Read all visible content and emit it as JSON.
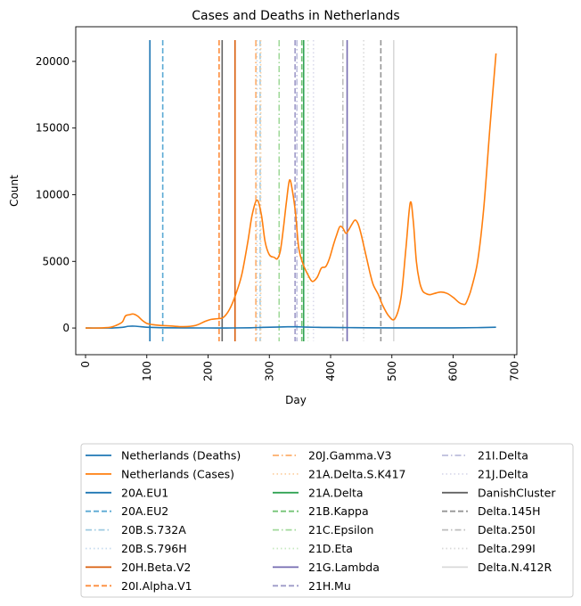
{
  "chart_data": {
    "type": "line",
    "title": "Cases and Deaths in Netherlands",
    "xlabel": "Day",
    "ylabel": "Count",
    "xlim": [
      -16,
      704
    ],
    "ylim": [
      -2000,
      22600
    ],
    "xticks": [
      0,
      100,
      200,
      300,
      400,
      500,
      600,
      700
    ],
    "yticks": [
      0,
      5000,
      10000,
      15000,
      20000
    ],
    "grid": false,
    "legend_placement": "below plot, 3 columns",
    "series": [
      {
        "name": "Netherlands (Deaths)",
        "color": "#1f77b4",
        "x": [
          0,
          40,
          60,
          70,
          80,
          90,
          100,
          110,
          130,
          160,
          200,
          240,
          270,
          290,
          310,
          330,
          345,
          360,
          380,
          400,
          430,
          460,
          500,
          550,
          600,
          640,
          670
        ],
        "y": [
          0,
          0,
          50,
          130,
          140,
          100,
          60,
          40,
          20,
          10,
          5,
          5,
          20,
          50,
          70,
          90,
          90,
          70,
          50,
          40,
          30,
          20,
          10,
          10,
          10,
          30,
          60
        ]
      },
      {
        "name": "Netherlands (Cases)",
        "color": "#ff7f0e",
        "x": [
          0,
          20,
          40,
          50,
          60,
          65,
          72,
          78,
          85,
          92,
          100,
          110,
          120,
          140,
          160,
          180,
          195,
          205,
          215,
          225,
          235,
          245,
          255,
          265,
          272,
          280,
          287,
          293,
          300,
          308,
          313,
          318,
          323,
          328,
          333,
          338,
          343,
          348,
          355,
          363,
          370,
          378,
          385,
          392,
          398,
          405,
          410,
          415,
          420,
          425,
          430,
          435,
          440,
          445,
          450,
          455,
          460,
          465,
          470,
          478,
          485,
          495,
          505,
          515,
          523,
          530,
          535,
          540,
          545,
          550,
          555,
          562,
          570,
          580,
          590,
          600,
          610,
          615,
          620,
          625,
          630,
          640,
          650,
          660,
          670
        ],
        "y": [
          0,
          0,
          50,
          200,
          450,
          900,
          1000,
          1050,
          900,
          600,
          350,
          250,
          200,
          150,
          100,
          200,
          500,
          650,
          700,
          800,
          1400,
          2500,
          4000,
          6500,
          8500,
          9600,
          8500,
          6500,
          5500,
          5300,
          5200,
          5800,
          7500,
          9500,
          11100,
          10200,
          8500,
          6000,
          4800,
          4000,
          3500,
          3800,
          4500,
          4600,
          5200,
          6300,
          7000,
          7600,
          7500,
          7100,
          7400,
          7800,
          8100,
          7800,
          7000,
          6000,
          5000,
          4000,
          3200,
          2500,
          1700,
          900,
          700,
          2300,
          6000,
          9400,
          8000,
          5000,
          3500,
          2800,
          2600,
          2500,
          2600,
          2700,
          2600,
          2300,
          1900,
          1800,
          1800,
          2300,
          3000,
          5000,
          9000,
          15000,
          20600
        ]
      }
    ],
    "vlines": [
      {
        "name": "20A.EU1",
        "x": 105,
        "color": "#1f77b4",
        "style": "solid"
      },
      {
        "name": "20A.EU2",
        "x": 126,
        "color": "#5aa9d4",
        "style": "dashed"
      },
      {
        "name": "20B.S.732A",
        "x": 285,
        "color": "#9ecae1",
        "style": "dashdot"
      },
      {
        "name": "20B.S.796H",
        "x": 280,
        "color": "#c6dbef",
        "style": "dotted"
      },
      {
        "name": "20H.Beta.V2",
        "x": 244,
        "color": "#d95f0e",
        "style": "solid"
      },
      {
        "name": "20I.Alpha.V1",
        "x": 218,
        "color": "#fd8d3c",
        "style": "dashed"
      },
      {
        "name": "20J.Gamma.V3",
        "x": 278,
        "color": "#fdae6b",
        "style": "dashdot"
      },
      {
        "name": "21A.Delta.S.K417",
        "x": 286,
        "color": "#fdd0a2",
        "style": "dotted"
      },
      {
        "name": "21A.Delta",
        "x": 356,
        "color": "#31a354",
        "style": "solid"
      },
      {
        "name": "21B.Kappa",
        "x": 353,
        "color": "#74c476",
        "style": "dashed"
      },
      {
        "name": "21C.Epsilon",
        "x": 316,
        "color": "#a1d99b",
        "style": "dashdot"
      },
      {
        "name": "21D.Eta",
        "x": 363,
        "color": "#c7e9c0",
        "style": "dotted"
      },
      {
        "name": "21G.Lambda",
        "x": 427,
        "color": "#756bb1",
        "style": "solid"
      },
      {
        "name": "21H.Mu",
        "x": 342,
        "color": "#9e9ac8",
        "style": "dashed"
      },
      {
        "name": "21I.Delta",
        "x": 345,
        "color": "#bcbddc",
        "style": "dashdot"
      },
      {
        "name": "21J.Delta",
        "x": 372,
        "color": "#dadaeb",
        "style": "dotted"
      },
      {
        "name": "DanishCluster",
        "x": 223,
        "color": "#636363",
        "style": "solid"
      },
      {
        "name": "Delta.145H",
        "x": 482,
        "color": "#969696",
        "style": "dashed"
      },
      {
        "name": "Delta.250I",
        "x": 420,
        "color": "#bdbdbd",
        "style": "dashdot"
      },
      {
        "name": "Delta.299I",
        "x": 454,
        "color": "#d9d9d9",
        "style": "dotted"
      },
      {
        "name": "Delta.N.412R",
        "x": 503,
        "color": "#d9d9d9",
        "style": "solid"
      }
    ]
  }
}
